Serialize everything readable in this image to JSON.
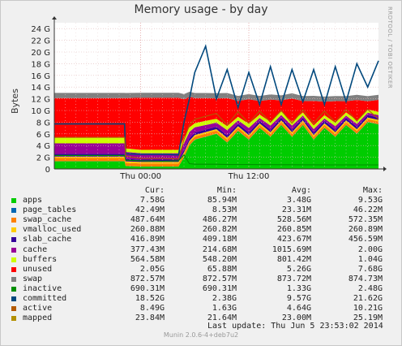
{
  "watermark": "RRDTOOL / TOBI OETIKER",
  "last_update": "Last update:  Thu Jun  5 23:53:02 2014",
  "footer": "Munin 2.0.6-4+deb7u2",
  "legend": {
    "headers": [
      "Cur:",
      "Min:",
      "Avg:",
      "Max:"
    ],
    "rows": [
      {
        "name": "apps",
        "color": "#00cc00",
        "cur": "7.58G",
        "min": "85.94M",
        "avg": "3.48G",
        "max": "9.53G"
      },
      {
        "name": "page_tables",
        "color": "#0066b3",
        "cur": "42.49M",
        "min": "8.53M",
        "avg": "23.31M",
        "max": "46.22M"
      },
      {
        "name": "swap_cache",
        "color": "#ff8000",
        "cur": "487.64M",
        "min": "486.27M",
        "avg": "528.56M",
        "max": "572.35M"
      },
      {
        "name": "vmalloc_used",
        "color": "#ffcc00",
        "cur": "260.88M",
        "min": "260.82M",
        "avg": "260.85M",
        "max": "260.89M"
      },
      {
        "name": "slab_cache",
        "color": "#330099",
        "cur": "416.89M",
        "min": "409.18M",
        "avg": "423.67M",
        "max": "456.59M"
      },
      {
        "name": "cache",
        "color": "#990099",
        "cur": "377.43M",
        "min": "214.68M",
        "avg": "1015.69M",
        "max": "2.00G"
      },
      {
        "name": "buffers",
        "color": "#ccff00",
        "cur": "564.58M",
        "min": "548.20M",
        "avg": "801.42M",
        "max": "1.04G"
      },
      {
        "name": "unused",
        "color": "#ff0000",
        "cur": "2.05G",
        "min": "65.88M",
        "avg": "5.26G",
        "max": "7.68G"
      },
      {
        "name": "swap",
        "color": "#808080",
        "cur": "872.57M",
        "min": "872.57M",
        "avg": "873.72M",
        "max": "874.73M"
      },
      {
        "name": "inactive",
        "color": "#008f00",
        "cur": "690.31M",
        "min": "690.31M",
        "avg": "1.33G",
        "max": "2.48G"
      },
      {
        "name": "committed",
        "color": "#00487d",
        "cur": "18.52G",
        "min": "2.38G",
        "avg": "9.57G",
        "max": "21.62G"
      },
      {
        "name": "active",
        "color": "#b35a00",
        "cur": "8.49G",
        "min": "1.63G",
        "avg": "4.64G",
        "max": "10.21G"
      },
      {
        "name": "mapped",
        "color": "#b38f00",
        "cur": "23.84M",
        "min": "21.64M",
        "avg": "23.00M",
        "max": "25.19M"
      }
    ]
  },
  "chart_data": {
    "type": "area",
    "title": "Memory usage - by day",
    "ylabel": "Bytes",
    "xlabel": "",
    "ylim": [
      0,
      25
    ],
    "yticks": [
      0,
      2,
      4,
      6,
      8,
      10,
      12,
      14,
      16,
      18,
      20,
      22,
      24
    ],
    "ytick_labels": [
      "0",
      "2 G",
      "4 G",
      "6 G",
      "8 G",
      "10 G",
      "12 G",
      "14 G",
      "16 G",
      "18 G",
      "20 G",
      "22 G",
      "24 G"
    ],
    "xlim": [
      0,
      30
    ],
    "xticks": [
      8,
      18
    ],
    "xtick_labels": [
      "Thu 00:00",
      "Thu 12:00"
    ],
    "grid": true,
    "x": [
      0,
      4,
      6.5,
      6.6,
      8,
      10,
      11.5,
      12,
      12.5,
      13,
      14,
      15,
      16,
      17,
      18,
      19,
      20,
      21,
      22,
      23,
      24,
      25,
      26,
      27,
      28,
      29,
      30
    ],
    "stack": [
      {
        "name": "apps",
        "values": [
          1.3,
          1.3,
          1.3,
          0.5,
          0.4,
          0.4,
          0.4,
          2.0,
          4.0,
          5.0,
          5.5,
          6.0,
          4.5,
          6.5,
          5.0,
          7.0,
          5.5,
          7.5,
          5.5,
          7.5,
          5.0,
          7.0,
          5.5,
          7.5,
          6.0,
          8.0,
          7.6
        ]
      },
      {
        "name": "page_tables",
        "values": [
          0.02,
          0.02,
          0.02,
          0.01,
          0.01,
          0.01,
          0.01,
          0.02,
          0.03,
          0.03,
          0.03,
          0.03,
          0.03,
          0.03,
          0.03,
          0.03,
          0.03,
          0.04,
          0.03,
          0.04,
          0.03,
          0.04,
          0.03,
          0.04,
          0.04,
          0.04,
          0.04
        ]
      },
      {
        "name": "swap_cache",
        "values": [
          0.55,
          0.55,
          0.55,
          0.53,
          0.52,
          0.52,
          0.52,
          0.52,
          0.52,
          0.51,
          0.51,
          0.51,
          0.51,
          0.51,
          0.51,
          0.5,
          0.5,
          0.5,
          0.5,
          0.5,
          0.5,
          0.5,
          0.49,
          0.49,
          0.49,
          0.49,
          0.49
        ]
      },
      {
        "name": "vmalloc_used",
        "values": [
          0.26,
          0.26,
          0.26,
          0.26,
          0.26,
          0.26,
          0.26,
          0.26,
          0.26,
          0.26,
          0.26,
          0.26,
          0.26,
          0.26,
          0.26,
          0.26,
          0.26,
          0.26,
          0.26,
          0.26,
          0.26,
          0.26,
          0.26,
          0.26,
          0.26,
          0.26,
          0.26
        ]
      },
      {
        "name": "slab_cache",
        "values": [
          0.45,
          0.45,
          0.45,
          0.42,
          0.41,
          0.41,
          0.41,
          0.42,
          0.42,
          0.42,
          0.42,
          0.42,
          0.42,
          0.42,
          0.42,
          0.42,
          0.42,
          0.42,
          0.42,
          0.42,
          0.42,
          0.42,
          0.42,
          0.42,
          0.42,
          0.42,
          0.42
        ]
      },
      {
        "name": "cache",
        "values": [
          1.8,
          1.8,
          1.8,
          1.2,
          1.1,
          1.1,
          1.1,
          1.2,
          1.1,
          0.9,
          0.8,
          0.7,
          0.9,
          0.6,
          0.8,
          0.5,
          0.7,
          0.5,
          0.7,
          0.4,
          0.6,
          0.4,
          0.6,
          0.4,
          0.5,
          0.4,
          0.38
        ]
      },
      {
        "name": "buffers",
        "values": [
          0.95,
          0.95,
          0.95,
          0.6,
          0.56,
          0.56,
          0.56,
          0.9,
          0.8,
          0.7,
          0.7,
          0.65,
          0.7,
          0.6,
          0.7,
          0.6,
          0.65,
          0.6,
          0.65,
          0.58,
          0.62,
          0.58,
          0.6,
          0.57,
          0.58,
          0.57,
          0.56
        ]
      },
      {
        "name": "unused",
        "values": [
          6.8,
          6.8,
          6.8,
          8.6,
          8.9,
          8.9,
          8.9,
          6.6,
          5.2,
          4.3,
          3.9,
          3.5,
          4.8,
          2.7,
          4.2,
          2.3,
          3.8,
          1.9,
          4.0,
          1.9,
          4.2,
          2.3,
          3.7,
          1.9,
          3.5,
          1.4,
          2.05
        ]
      },
      {
        "name": "swap",
        "values": [
          0.87,
          0.87,
          0.87,
          0.87,
          0.87,
          0.87,
          0.87,
          0.87,
          0.87,
          0.87,
          0.87,
          0.87,
          0.87,
          0.87,
          0.87,
          0.87,
          0.87,
          0.87,
          0.87,
          0.87,
          0.87,
          0.87,
          0.87,
          0.87,
          0.87,
          0.87,
          0.87
        ]
      }
    ],
    "lines": [
      {
        "name": "committed",
        "values": [
          7.7,
          7.7,
          7.7,
          2.6,
          2.5,
          2.5,
          2.4,
          8.0,
          12.0,
          16.5,
          21.0,
          12.0,
          17.0,
          10.5,
          16.5,
          11.0,
          17.5,
          11.0,
          17.0,
          11.5,
          17.0,
          11.0,
          17.5,
          11.5,
          18.0,
          14.0,
          18.5
        ]
      },
      {
        "name": "active",
        "values": [
          5.4,
          5.4,
          5.4,
          2.2,
          1.8,
          1.8,
          1.7,
          5.0,
          7.5,
          8.5,
          9.0,
          9.5,
          7.5,
          9.8,
          7.8,
          9.9,
          8.0,
          10.0,
          7.8,
          10.1,
          7.8,
          9.9,
          8.0,
          10.2,
          8.2,
          10.2,
          8.5
        ]
      },
      {
        "name": "inactive",
        "values": [
          2.3,
          2.3,
          2.3,
          1.5,
          1.4,
          1.3,
          1.4,
          2.4,
          0.9,
          0.8,
          0.8,
          0.8,
          0.75,
          0.75,
          0.75,
          0.74,
          0.73,
          0.72,
          0.72,
          0.71,
          0.71,
          0.7,
          0.7,
          0.69,
          0.69,
          0.69,
          0.69
        ]
      },
      {
        "name": "mapped",
        "values": [
          0.02,
          0.02,
          0.02,
          0.02,
          0.02,
          0.02,
          0.02,
          0.02,
          0.02,
          0.02,
          0.02,
          0.02,
          0.02,
          0.02,
          0.02,
          0.02,
          0.02,
          0.02,
          0.02,
          0.02,
          0.02,
          0.02,
          0.02,
          0.02,
          0.02,
          0.02,
          0.02
        ]
      }
    ]
  }
}
